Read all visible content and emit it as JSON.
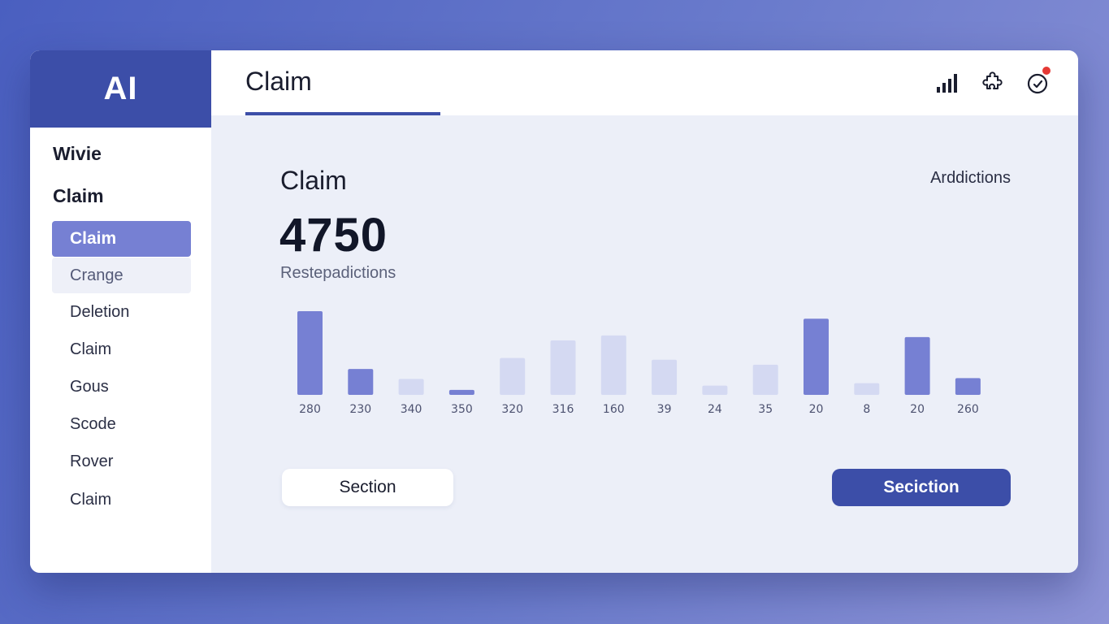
{
  "sidebar": {
    "logo": "AI",
    "sections": [
      "Wivie",
      "Claim"
    ],
    "items": [
      {
        "label": "Claim",
        "state": "active"
      },
      {
        "label": "Crange",
        "state": "soft"
      },
      {
        "label": "Deletion",
        "state": "normal"
      },
      {
        "label": "Claim",
        "state": "normal"
      },
      {
        "label": "Gous",
        "state": "normal"
      },
      {
        "label": "Scode",
        "state": "normal"
      },
      {
        "label": "Rover",
        "state": "normal"
      },
      {
        "label": "Claim",
        "state": "normal"
      }
    ]
  },
  "header": {
    "title": "Claim",
    "icons": [
      "signal-bars-icon",
      "puzzle-icon",
      "timer-icon"
    ]
  },
  "card": {
    "title": "Claim",
    "value": "4750",
    "subtitle": "Restepadictions",
    "right_label": "Arddictions"
  },
  "chart_data": {
    "type": "bar",
    "categories": [
      "280",
      "230",
      "340",
      "350",
      "320",
      "316",
      "160",
      "39",
      "24",
      "35",
      "20",
      "8",
      "20",
      "260"
    ],
    "values": [
      100,
      31,
      19,
      6,
      44,
      65,
      71,
      42,
      11,
      36,
      91,
      14,
      69,
      20
    ],
    "highlighted": [
      true,
      true,
      false,
      true,
      false,
      false,
      false,
      false,
      false,
      false,
      true,
      false,
      true,
      true
    ],
    "ylim": [
      0,
      100
    ],
    "colors": {
      "highlight": "#7680d3",
      "muted": "#d4d9f2"
    }
  },
  "buttons": {
    "secondary": "Section",
    "primary": "Seciction"
  },
  "colors": {
    "accent": "#3c4ea8",
    "notification": "#e53935"
  }
}
